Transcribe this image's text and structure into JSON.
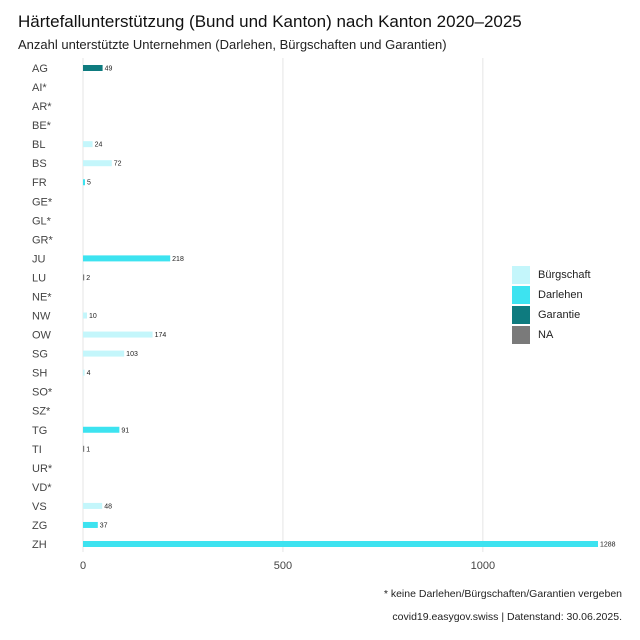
{
  "chart_data": {
    "type": "bar",
    "orientation": "horizontal",
    "title": "Härtefallunterstützung (Bund und Kanton) nach Kanton 2020–2025",
    "subtitle": "Anzahl unterstützte Unternehmen (Darlehen, Bürgschaften und Garantien)",
    "categories": [
      "AG",
      "AI*",
      "AR*",
      "BE*",
      "BL",
      "BS",
      "FR",
      "GE*",
      "GL*",
      "GR*",
      "JU",
      "LU",
      "NE*",
      "NW",
      "OW",
      "SG",
      "SH",
      "SO*",
      "SZ*",
      "TG",
      "TI",
      "UR*",
      "VD*",
      "VS",
      "ZG",
      "ZH"
    ],
    "values": [
      49,
      null,
      null,
      null,
      24,
      72,
      5,
      null,
      null,
      null,
      218,
      2,
      null,
      10,
      174,
      103,
      4,
      null,
      null,
      91,
      1,
      null,
      null,
      48,
      37,
      1288
    ],
    "types": [
      "Garantie",
      null,
      null,
      null,
      "Bürgschaft",
      "Bürgschaft",
      "Darlehen",
      null,
      null,
      null,
      "Darlehen",
      "NA",
      null,
      "Bürgschaft",
      "Bürgschaft",
      "Bürgschaft",
      "Bürgschaft",
      null,
      null,
      "Darlehen",
      "NA",
      null,
      null,
      "Bürgschaft",
      "Darlehen",
      "Darlehen"
    ],
    "value_labels": [
      "49",
      "",
      "",
      "",
      "24",
      "72",
      "5",
      "",
      "",
      "",
      "218",
      "2",
      "",
      "10",
      "174",
      "103",
      "4",
      "",
      "",
      "91",
      "1",
      "",
      "",
      "48",
      "37",
      "1288"
    ],
    "xlim": [
      0,
      1288
    ],
    "xticks": [
      0,
      500,
      1000
    ],
    "xtick_labels": [
      "0",
      "500",
      "1000"
    ],
    "grid": true,
    "legend_position": "right",
    "legend": [
      {
        "name": "Bürgschaft",
        "color": "#c4f6fb"
      },
      {
        "name": "Darlehen",
        "color": "#3de3f0"
      },
      {
        "name": "Garantie",
        "color": "#0e7b7f"
      },
      {
        "name": "NA",
        "color": "#7a7a7a"
      }
    ]
  },
  "note": "* keine Darlehen/Bürgschaften/Garantien vergeben",
  "caption": "covid19.easygov.swiss | Datenstand: 30.06.2025."
}
